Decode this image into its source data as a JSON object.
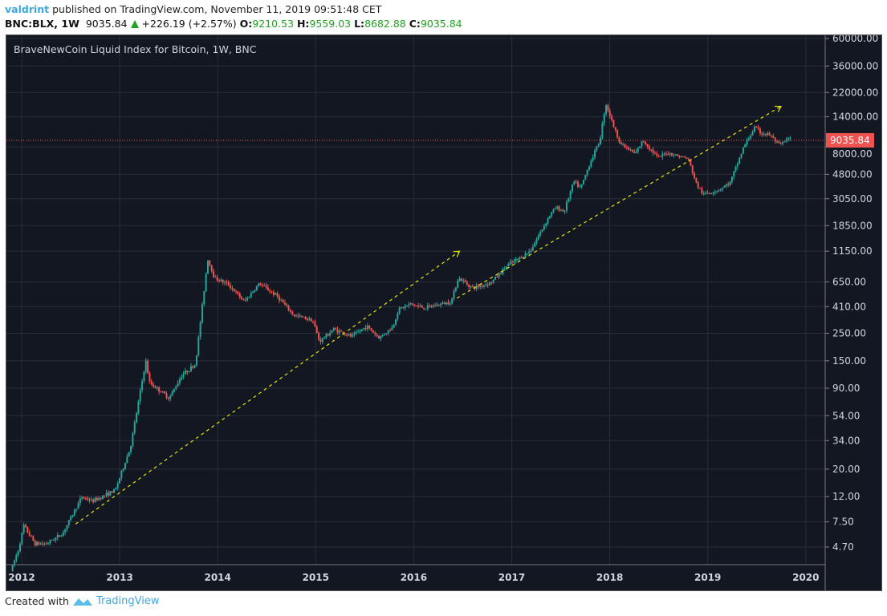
{
  "header": {
    "user": "valdrint",
    "published": "published on TradingView.com, November 11, 2019 09:51:48 CET",
    "symbol": "BNC:BLX, 1W",
    "last": "9035.84",
    "change": "+226.19 (+2.57%)",
    "o_label": "O:",
    "o": "9210.53",
    "h_label": "H:",
    "h": "9559.03",
    "l_label": "L:",
    "l": "8682.88",
    "c_label": "C:",
    "c": "9035.84"
  },
  "footer": {
    "created": "Created with",
    "brand": "TradingView"
  },
  "colors": {
    "background": "#131722",
    "grid": "#2a2e39",
    "up": "#26a69a",
    "down": "#ef5350",
    "trendline": "#e5e500",
    "last_price": "#ef5350"
  },
  "chart_data": {
    "type": "candlestick",
    "title": "BraveNewCoin Liquid Index for Bitcoin, 1W, BNC",
    "interval": "1W",
    "y_scale": "log",
    "ylim": [
      4.2,
      62000
    ],
    "y_ticks": [
      "60000.00",
      "36000.00",
      "22000.00",
      "14000.00",
      "8000.00",
      "4800.00",
      "3050.00",
      "1850.00",
      "1150.00",
      "650.00",
      "410.00",
      "250.00",
      "150.00",
      "90.00",
      "54.00",
      "34.00",
      "20.00",
      "12.00",
      "7.50",
      "4.70"
    ],
    "x_ticks": [
      "2012",
      "2013",
      "2014",
      "2015",
      "2016",
      "2017",
      "2018",
      "2019",
      "2020"
    ],
    "grid": true,
    "last_price_label": "9035.84",
    "approx_closes": [
      [
        "2011-11-21",
        3
      ],
      [
        "2011-12-20",
        4.5
      ],
      [
        "2012-01-09",
        7
      ],
      [
        "2012-02-20",
        5
      ],
      [
        "2012-04-01",
        5
      ],
      [
        "2012-06-01",
        6
      ],
      [
        "2012-08-13",
        12
      ],
      [
        "2012-09-20",
        11
      ],
      [
        "2012-12-15",
        13.5
      ],
      [
        "2013-02-10",
        30
      ],
      [
        "2013-04-08",
        150
      ],
      [
        "2013-04-22",
        100
      ],
      [
        "2013-07-05",
        75
      ],
      [
        "2013-08-20",
        115
      ],
      [
        "2013-10-10",
        140
      ],
      [
        "2013-11-25",
        1000
      ],
      [
        "2013-12-20",
        700
      ],
      [
        "2014-02-10",
        620
      ],
      [
        "2014-04-10",
        450
      ],
      [
        "2014-06-05",
        630
      ],
      [
        "2014-08-10",
        500
      ],
      [
        "2014-10-10",
        350
      ],
      [
        "2014-12-20",
        320
      ],
      [
        "2015-01-15",
        215
      ],
      [
        "2015-03-10",
        270
      ],
      [
        "2015-05-15",
        235
      ],
      [
        "2015-07-10",
        285
      ],
      [
        "2015-08-25",
        230
      ],
      [
        "2015-10-15",
        280
      ],
      [
        "2015-11-05",
        390
      ],
      [
        "2015-12-20",
        430
      ],
      [
        "2016-02-10",
        400
      ],
      [
        "2016-05-20",
        450
      ],
      [
        "2016-06-15",
        700
      ],
      [
        "2016-08-10",
        580
      ],
      [
        "2016-10-15",
        640
      ],
      [
        "2016-12-20",
        900
      ],
      [
        "2017-01-10",
        950
      ],
      [
        "2017-03-10",
        1150
      ],
      [
        "2017-05-20",
        2200
      ],
      [
        "2017-06-15",
        2600
      ],
      [
        "2017-07-15",
        2400
      ],
      [
        "2017-08-20",
        4200
      ],
      [
        "2017-09-15",
        3700
      ],
      [
        "2017-10-20",
        6000
      ],
      [
        "2017-11-25",
        9000
      ],
      [
        "2017-12-17",
        18000
      ],
      [
        "2018-01-20",
        11000
      ],
      [
        "2018-02-10",
        8500
      ],
      [
        "2018-04-05",
        7000
      ],
      [
        "2018-05-05",
        9000
      ],
      [
        "2018-07-01",
        6500
      ],
      [
        "2018-08-01",
        7200
      ],
      [
        "2018-10-20",
        6400
      ],
      [
        "2018-11-20",
        4000
      ],
      [
        "2018-12-15",
        3300
      ],
      [
        "2019-02-10",
        3600
      ],
      [
        "2019-03-25",
        4100
      ],
      [
        "2019-05-15",
        8000
      ],
      [
        "2019-06-25",
        11500
      ],
      [
        "2019-07-20",
        10300
      ],
      [
        "2019-08-20",
        10000
      ],
      [
        "2019-09-25",
        8200
      ],
      [
        "2019-10-28",
        9300
      ],
      [
        "2019-11-11",
        9035.84
      ]
    ],
    "trendlines": [
      {
        "from": [
          "2012-07-20",
          7.2
        ],
        "to": [
          "2016-06-20",
          1150
        ],
        "arrow": true
      },
      {
        "from": [
          "2016-06-10",
          480
        ],
        "to": [
          "2019-10-01",
          17000
        ],
        "arrow": true
      }
    ]
  }
}
